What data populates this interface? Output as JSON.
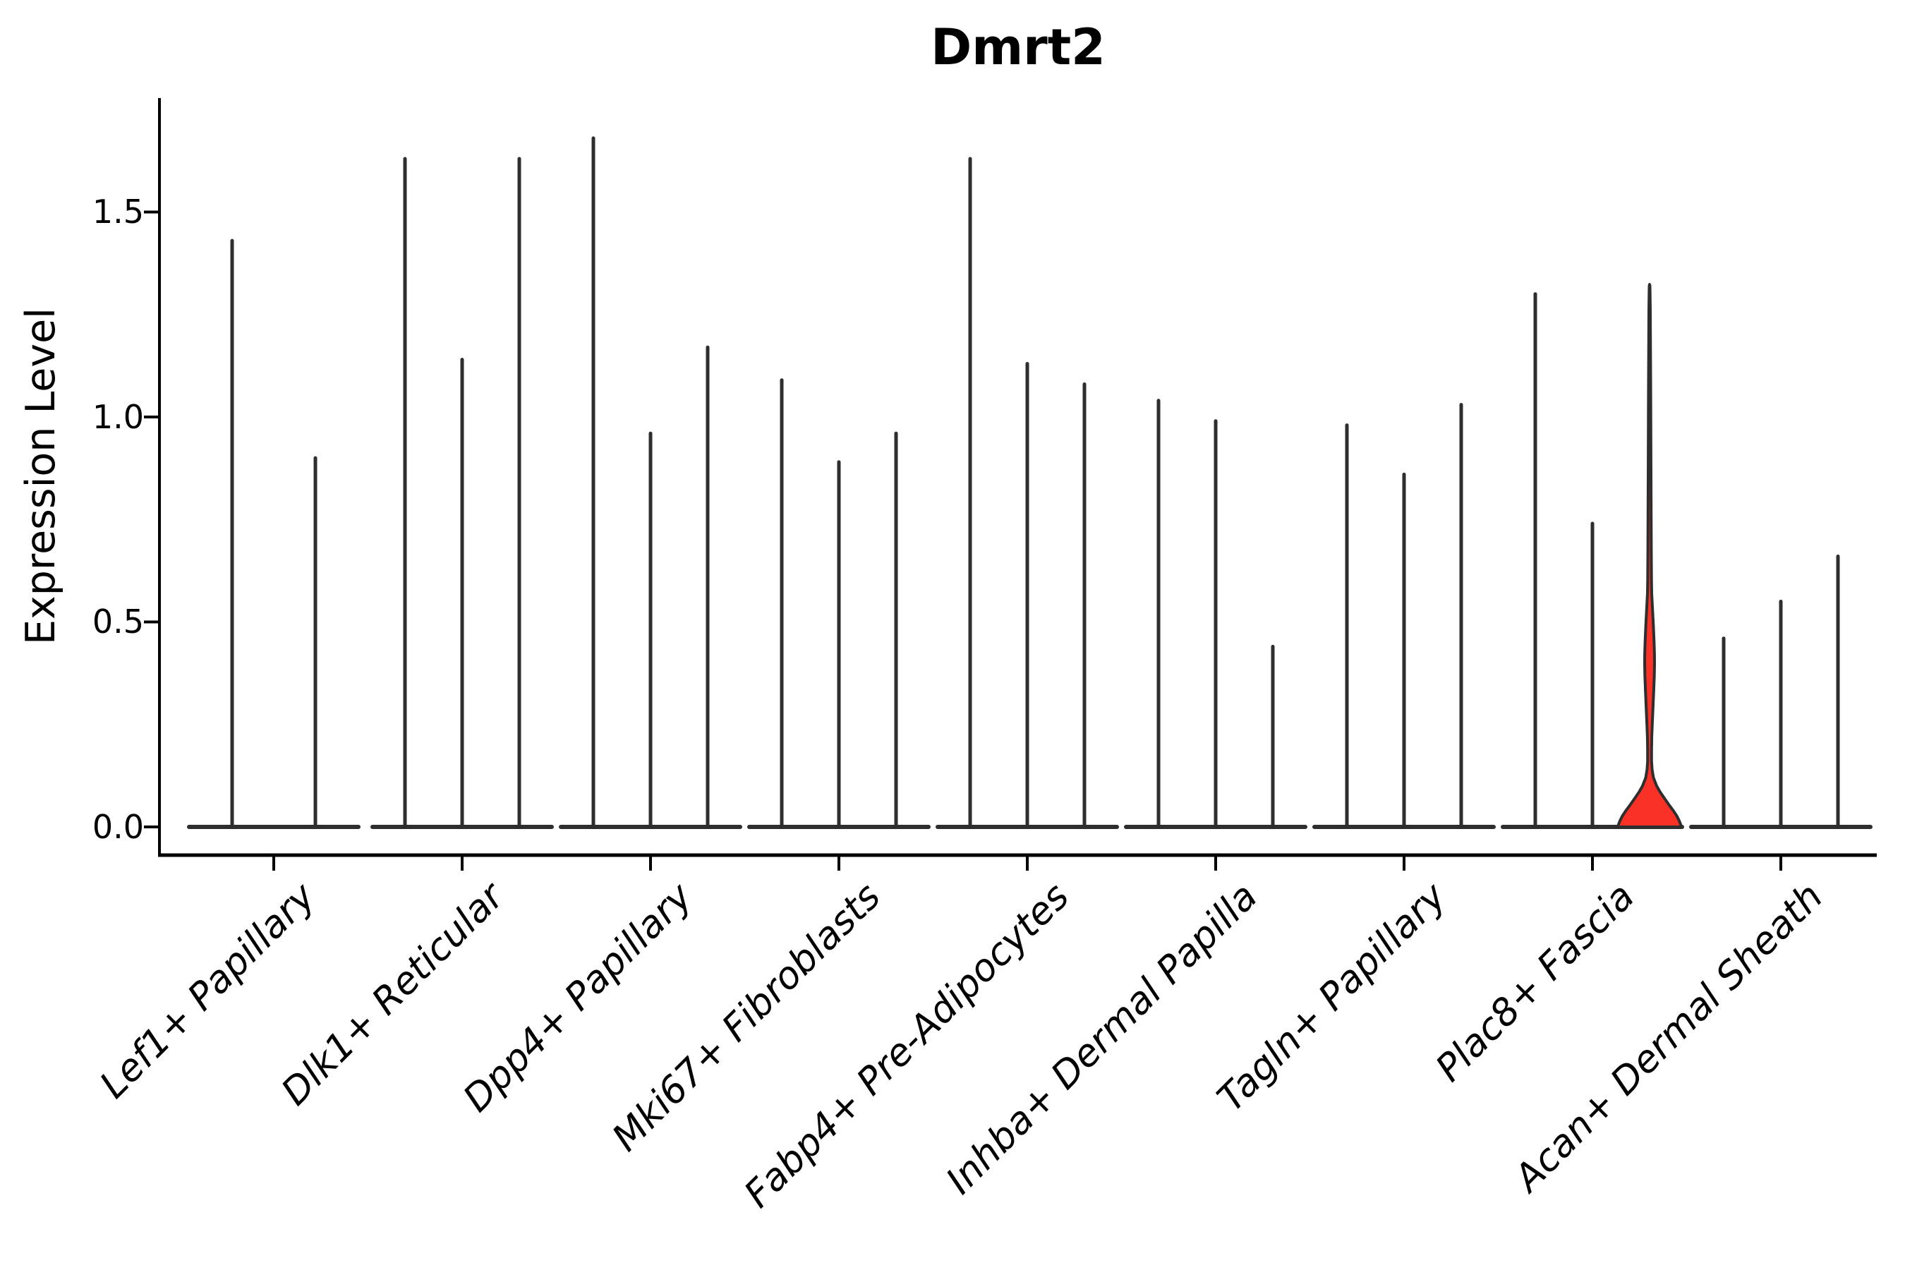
{
  "title": "Dmrt2",
  "chart_data": {
    "type": "violin",
    "title": "Dmrt2",
    "ylabel": "Expression Level",
    "xlabel": "",
    "ylim": [
      0,
      1.78
    ],
    "yticks": [
      0,
      0.5,
      1.0,
      1.5
    ],
    "ytick_labels": [
      "0.0",
      "0.5",
      "1.0",
      "1.5"
    ],
    "grid": false,
    "legend": "none",
    "axis_color": "#000000",
    "edge_color": "#2E2E2E",
    "highlight_fill": "#F93127",
    "categories": [
      "Lef1+ Papillary",
      "Dlk1+ Reticular",
      "Dpp4+ Papillary",
      "Mki67+ Fibroblasts",
      "Fabp4+ Pre-Adipocytes",
      "Inhba+ Dermal Papilla",
      "Tagln+ Papillary",
      "Plac8+ Fascia",
      "Acan+ Dermal Sheath"
    ],
    "groups": [
      {
        "category": "Lef1+ Papillary",
        "violins": [
          {
            "max": 1.43
          },
          {
            "max": 0.9
          }
        ]
      },
      {
        "category": "Dlk1+ Reticular",
        "violins": [
          {
            "max": 1.63
          },
          {
            "max": 1.14
          },
          {
            "max": 1.63
          }
        ]
      },
      {
        "category": "Dpp4+ Papillary",
        "violins": [
          {
            "max": 1.68
          },
          {
            "max": 0.96
          },
          {
            "max": 1.17
          }
        ]
      },
      {
        "category": "Mki67+ Fibroblasts",
        "violins": [
          {
            "max": 1.09
          },
          {
            "max": 0.89
          },
          {
            "max": 0.96
          }
        ]
      },
      {
        "category": "Fabp4+ Pre-Adipocytes",
        "violins": [
          {
            "max": 1.63
          },
          {
            "max": 1.13
          },
          {
            "max": 1.08
          }
        ]
      },
      {
        "category": "Inhba+ Dermal Papilla",
        "violins": [
          {
            "max": 1.04
          },
          {
            "max": 0.99
          },
          {
            "max": 0.44
          }
        ]
      },
      {
        "category": "Tagln+ Papillary",
        "violins": [
          {
            "max": 0.98
          },
          {
            "max": 0.86
          },
          {
            "max": 1.03
          }
        ]
      },
      {
        "category": "Plac8+ Fascia",
        "violins": [
          {
            "max": 1.3
          },
          {
            "max": 0.74
          },
          {
            "max": 1.32,
            "highlighted": true,
            "fill": "#F93127",
            "bulge": {
              "from": 0.21,
              "to": 0.57,
              "peak": 0.4
            }
          }
        ]
      },
      {
        "category": "Acan+ Dermal Sheath",
        "violins": [
          {
            "max": 0.46
          },
          {
            "max": 0.55
          },
          {
            "max": 0.66
          }
        ]
      }
    ]
  }
}
